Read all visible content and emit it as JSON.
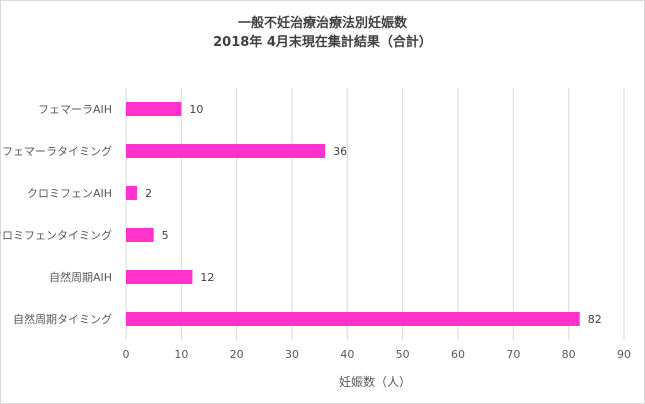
{
  "chart_data": {
    "type": "bar",
    "orientation": "horizontal",
    "title": "一般不妊治療治療法別妊娠数",
    "subtitle": "2018年 4月末現在集計結果（合計）",
    "categories": [
      "フェマーラAIH",
      "フェマーラタイミング",
      "クロミフェンAIH",
      "クロミフェンタイミング",
      "自然周期AIH",
      "自然周期タイミング"
    ],
    "values": [
      10,
      36,
      2,
      5,
      12,
      82
    ],
    "xlabel": "妊娠数（人）",
    "ylabel": "",
    "xlim": [
      0,
      90
    ],
    "xticks": [
      0,
      10,
      20,
      30,
      40,
      50,
      60,
      70,
      80,
      90
    ],
    "grid": true,
    "legend": "none",
    "colors": {
      "bar": "#ff33cc",
      "grid": "#d9d9d9",
      "text": "#595959",
      "title": "#404040"
    }
  }
}
